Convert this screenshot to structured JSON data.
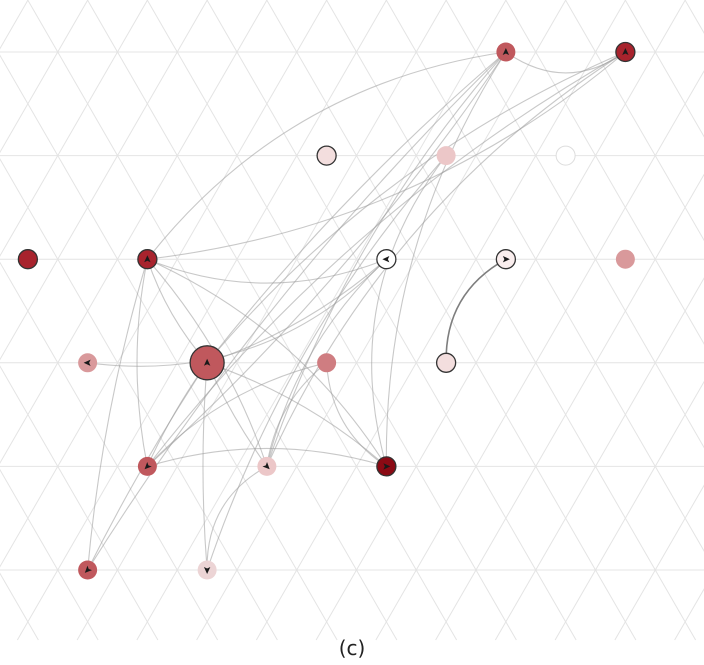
{
  "caption": "(c)",
  "colors": {
    "background": "#ffffff",
    "grid": "#e4e4e4",
    "edge": "#9a9a9a",
    "node_stroke": "#333333",
    "arrow": "#1a1a1a"
  },
  "graph": {
    "nodes": [
      {
        "id": "n1",
        "col": 8.5,
        "row": 0,
        "color": "#c0585d",
        "size": "medium",
        "stroke": false,
        "arrow": "up"
      },
      {
        "id": "n2",
        "col": 10.5,
        "row": 0,
        "color": "#a8232d",
        "size": "small",
        "stroke": true,
        "arrow": "up"
      },
      {
        "id": "n3",
        "col": 5.5,
        "row": 1,
        "color": "#f3dede",
        "size": "medium",
        "stroke": true,
        "arrow": null
      },
      {
        "id": "n4",
        "col": 7.5,
        "row": 1,
        "color": "#ecc7c8",
        "size": "medium",
        "stroke": false,
        "arrow": null
      },
      {
        "id": "n5",
        "col": 9.5,
        "row": 1,
        "color": "#ffffff",
        "size": "medium",
        "stroke": false,
        "arrow": null
      },
      {
        "id": "n6",
        "col": 0.5,
        "row": 2,
        "color": "#a8232d",
        "size": "medium",
        "stroke": true,
        "arrow": null
      },
      {
        "id": "n7",
        "col": 2.5,
        "row": 2,
        "color": "#a8232d",
        "size": "medium",
        "stroke": true,
        "arrow": "up"
      },
      {
        "id": "n8",
        "col": 6.5,
        "row": 2,
        "color": "#ffffff",
        "size": "medium",
        "stroke": true,
        "arrow": "left"
      },
      {
        "id": "n9",
        "col": 8.5,
        "row": 2,
        "color": "#faeeee",
        "size": "medium",
        "stroke": true,
        "arrow": "right"
      },
      {
        "id": "n10",
        "col": 10.5,
        "row": 2,
        "color": "#d9999b",
        "size": "medium",
        "stroke": false,
        "arrow": null
      },
      {
        "id": "n11",
        "col": 1.5,
        "row": 3,
        "color": "#d9999b",
        "size": "medium",
        "stroke": false,
        "arrow": "left"
      },
      {
        "id": "n12",
        "col": 3.5,
        "row": 3,
        "color": "#c0585d",
        "size": "large",
        "stroke": true,
        "arrow": "up"
      },
      {
        "id": "n13",
        "col": 5.5,
        "row": 3,
        "color": "#cf7d81",
        "size": "medium",
        "stroke": false,
        "arrow": null
      },
      {
        "id": "n14",
        "col": 7.5,
        "row": 3,
        "color": "#f3dede",
        "size": "medium",
        "stroke": true,
        "arrow": null
      },
      {
        "id": "n15",
        "col": 2.5,
        "row": 4,
        "color": "#c0585d",
        "size": "medium",
        "stroke": false,
        "arrow": "down-left"
      },
      {
        "id": "n16",
        "col": 4.5,
        "row": 4,
        "color": "#ecc7c8",
        "size": "medium",
        "stroke": false,
        "arrow": "down-right"
      },
      {
        "id": "n17",
        "col": 6.5,
        "row": 4,
        "color": "#8b0a14",
        "size": "medium",
        "stroke": true,
        "arrow": "right"
      },
      {
        "id": "n18",
        "col": 1.5,
        "row": 5,
        "color": "#c0585d",
        "size": "medium",
        "stroke": false,
        "arrow": "down-left"
      },
      {
        "id": "n19",
        "col": 3.5,
        "row": 5,
        "color": "#ecd4d5",
        "size": "medium",
        "stroke": false,
        "arrow": "down"
      }
    ],
    "edges": [
      {
        "source": "n1",
        "target": "n2",
        "bend": 0.35
      },
      {
        "source": "n2",
        "target": "n12",
        "bend": 0.12
      },
      {
        "source": "n2",
        "target": "n15",
        "bend": 0.1
      },
      {
        "source": "n2",
        "target": "n16",
        "bend": 0.15
      },
      {
        "source": "n2",
        "target": "n7",
        "bend": -0.15
      },
      {
        "source": "n1",
        "target": "n12",
        "bend": 0.05
      },
      {
        "source": "n1",
        "target": "n15",
        "bend": -0.06
      },
      {
        "source": "n1",
        "target": "n16",
        "bend": 0.1
      },
      {
        "source": "n1",
        "target": "n18",
        "bend": 0.06
      },
      {
        "source": "n1",
        "target": "n17",
        "bend": 0.15
      },
      {
        "source": "n1",
        "target": "n7",
        "bend": 0.2
      },
      {
        "source": "n7",
        "target": "n12",
        "bend": 0.1
      },
      {
        "source": "n7",
        "target": "n15",
        "bend": 0.1
      },
      {
        "source": "n7",
        "target": "n16",
        "bend": -0.1
      },
      {
        "source": "n7",
        "target": "n17",
        "bend": -0.15
      },
      {
        "source": "n7",
        "target": "n18",
        "bend": 0.05
      },
      {
        "source": "n7",
        "target": "n8",
        "bend": 0.2
      },
      {
        "source": "n12",
        "target": "n8",
        "bend": 0.1
      },
      {
        "source": "n12",
        "target": "n15",
        "bend": 0.05
      },
      {
        "source": "n12",
        "target": "n16",
        "bend": 0.05
      },
      {
        "source": "n12",
        "target": "n17",
        "bend": -0.1
      },
      {
        "source": "n12",
        "target": "n19",
        "bend": 0.04
      },
      {
        "source": "n12",
        "target": "n18",
        "bend": 0.03
      },
      {
        "source": "n11",
        "target": "n8",
        "bend": 0.25
      },
      {
        "source": "n8",
        "target": "n16",
        "bend": 0.15
      },
      {
        "source": "n13",
        "target": "n17",
        "bend": 0.25
      },
      {
        "source": "n13",
        "target": "n15",
        "bend": 0.15
      },
      {
        "source": "n4",
        "target": "n17",
        "bend": 0.25
      },
      {
        "source": "n4",
        "target": "n19",
        "bend": 0.1
      },
      {
        "source": "n16",
        "target": "n19",
        "bend": 0.3
      },
      {
        "source": "n14",
        "target": "n9",
        "bend": -0.3
      },
      {
        "source": "n13",
        "target": "n16",
        "bend": 0.2
      },
      {
        "source": "n15",
        "target": "n17",
        "bend": -0.15
      }
    ]
  }
}
